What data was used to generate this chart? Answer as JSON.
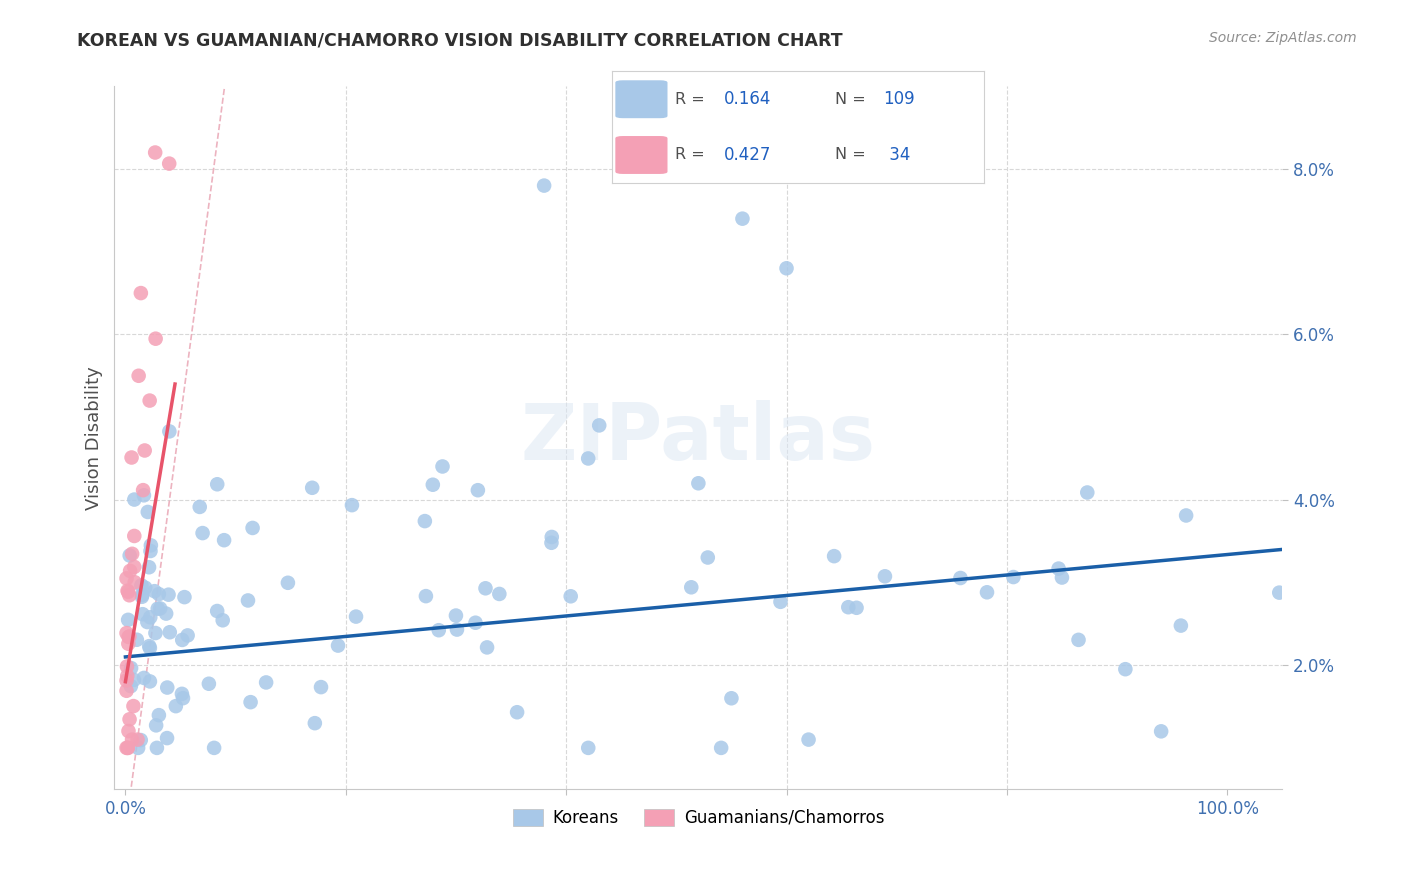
{
  "title": "KOREAN VS GUAMANIAN/CHAMORRO VISION DISABILITY CORRELATION CHART",
  "source": "Source: ZipAtlas.com",
  "ylabel": "Vision Disability",
  "yticks": [
    "2.0%",
    "4.0%",
    "6.0%",
    "8.0%"
  ],
  "ytick_vals": [
    0.02,
    0.04,
    0.06,
    0.08
  ],
  "ymin": 0.005,
  "ymax": 0.09,
  "xmin": -0.01,
  "xmax": 1.05,
  "legend_label1": "Koreans",
  "legend_label2": "Guamanians/Chamorros",
  "korean_color": "#a8c8e8",
  "guam_color": "#f4a0b5",
  "korean_line_color": "#1a5fa8",
  "guam_line_color": "#e8546a",
  "ref_line_color": "#e8a0b0",
  "watermark": "ZIPatlas",
  "background_color": "#ffffff",
  "grid_color": "#d8d8d8",
  "title_color": "#303030",
  "source_color": "#909090",
  "ylabel_color": "#505050",
  "tick_color": "#4070b0",
  "legend_r1": "0.164",
  "legend_n1": "109",
  "legend_r2": "0.427",
  "legend_n2": " 34"
}
